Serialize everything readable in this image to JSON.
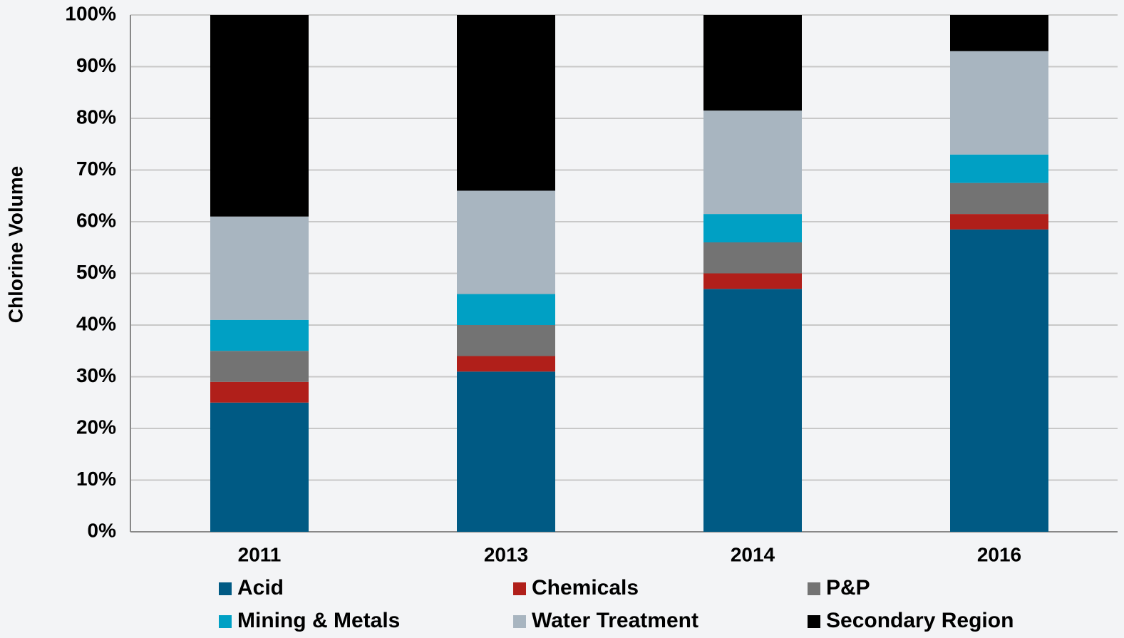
{
  "chart_data": {
    "type": "stacked_bar",
    "y_label": "Chlorine Volume",
    "categories": [
      "2011",
      "2013",
      "2014",
      "2016"
    ],
    "series": [
      {
        "name": "Acid",
        "color": "#005a84",
        "values": [
          25,
          31,
          47,
          58.5
        ]
      },
      {
        "name": "Chemicals",
        "color": "#b01f1a",
        "values": [
          4,
          3,
          3,
          3
        ]
      },
      {
        "name": "P&P",
        "color": "#737373",
        "values": [
          6,
          6,
          6,
          6
        ]
      },
      {
        "name": "Mining & Metals",
        "color": "#00a0c4",
        "values": [
          6,
          6,
          5.5,
          5.5
        ]
      },
      {
        "name": "Water Treatment",
        "color": "#a8b5c0",
        "values": [
          20,
          20,
          20,
          20
        ]
      },
      {
        "name": "Secondary Region",
        "color": "#000000",
        "values": [
          39,
          34,
          18.5,
          7
        ]
      }
    ],
    "ylim": [
      0,
      100
    ],
    "yticks": [
      {
        "value": 0,
        "label": "0%"
      },
      {
        "value": 10,
        "label": "10%"
      },
      {
        "value": 20,
        "label": "20%"
      },
      {
        "value": 30,
        "label": "30%"
      },
      {
        "value": 40,
        "label": "40%"
      },
      {
        "value": 50,
        "label": "50%"
      },
      {
        "value": 60,
        "label": "60%"
      },
      {
        "value": 70,
        "label": "70%"
      },
      {
        "value": 80,
        "label": "80%"
      },
      {
        "value": 90,
        "label": "90%"
      },
      {
        "value": 100,
        "label": "100%"
      }
    ],
    "grid": true
  }
}
